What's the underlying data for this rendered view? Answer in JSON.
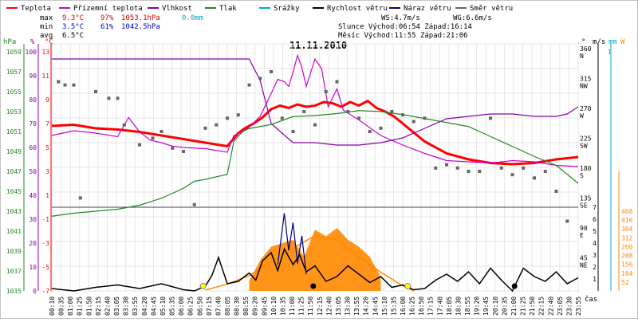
{
  "legend": [
    {
      "label": "Teplota",
      "color": "#ff0000"
    },
    {
      "label": "Přízemní teplota",
      "color": "#cc00cc"
    },
    {
      "label": "Vlhkost",
      "color": "#8800aa"
    },
    {
      "label": "Tlak",
      "color": "#228822"
    },
    {
      "label": "Srážky",
      "color": "#00aacc"
    },
    {
      "label": "Rychlost větru",
      "color": "#000000"
    },
    {
      "label": "Náraz větru",
      "color": "#000088"
    },
    {
      "label": "Směr větru",
      "color": "#666666"
    }
  ],
  "stats": {
    "max_label": "max",
    "max_temp": "9.3°C",
    "max_hum": "97%",
    "max_press": "1053.1hPa",
    "max_rain": "0.0mm",
    "min_label": "min",
    "min_temp": "3.5°C",
    "min_hum": "61%",
    "min_press": "1042.5hPa",
    "avg_label": "avg",
    "avg_temp": "6.5°C",
    "ws": "WS:4.7m/s",
    "wg": "WG:6.6m/s",
    "slunce": "Slunce Východ:06:54  Západ:16:14",
    "mesic": "Měsíc  Východ:11:55  Západ:21:06"
  },
  "axis_headers": {
    "hpa": "hPa",
    "pct": "%",
    "degc": "°C",
    "deg": "°",
    "ms": "m/s",
    "mm": "mm",
    "w": "W",
    "cas": "čas"
  },
  "chart_data": {
    "type": "line",
    "title": "11.11.2010",
    "x_ticks": [
      "00:10",
      "00:35",
      "01:00",
      "01:25",
      "01:50",
      "02:15",
      "02:40",
      "03:05",
      "03:30",
      "03:55",
      "04:20",
      "04:45",
      "05:10",
      "05:35",
      "06:00",
      "06:25",
      "06:50",
      "07:15",
      "07:40",
      "08:05",
      "08:30",
      "08:55",
      "09:20",
      "09:45",
      "10:10",
      "10:35",
      "11:00",
      "11:25",
      "11:50",
      "12:15",
      "12:40",
      "13:05",
      "13:30",
      "13:55",
      "14:20",
      "14:45",
      "15:10",
      "15:35",
      "16:00",
      "16:25",
      "16:50",
      "17:15",
      "17:40",
      "18:05",
      "18:30",
      "18:55",
      "19:20",
      "19:45",
      "20:10",
      "20:35",
      "21:00",
      "21:25",
      "21:50",
      "22:15",
      "22:40",
      "23:05",
      "23:30",
      "23:55"
    ],
    "axes": {
      "pressure_hpa": [
        "1059",
        "1057",
        "1055",
        "1053",
        "1051",
        "1049",
        "1047",
        "1045",
        "1043",
        "1041",
        "1039",
        "1037",
        "1035"
      ],
      "humidity_pct": [
        "100",
        "90",
        "80",
        "70",
        "60",
        "50",
        "40",
        "30",
        "20",
        "10",
        "0"
      ],
      "temp_c": [
        "13",
        "11",
        "9",
        "7",
        "5",
        "3",
        "1",
        "-1",
        "-3",
        "-5",
        "-7"
      ],
      "direction": [
        {
          "deg": "360",
          "dir": "N"
        },
        {
          "deg": "315",
          "dir": "NW"
        },
        {
          "deg": "270",
          "dir": "W"
        },
        {
          "deg": "225",
          "dir": "SW"
        },
        {
          "deg": "180",
          "dir": "S"
        },
        {
          "deg": "135",
          "dir": "SE"
        },
        {
          "deg": "90",
          "dir": "E"
        },
        {
          "deg": "45",
          "dir": "NE"
        }
      ],
      "wind_ms": [
        "7",
        "6",
        "5",
        "4",
        "3",
        "2",
        "1"
      ],
      "rain_mm": [
        "1"
      ],
      "solar_w": [
        "468",
        "416",
        "364",
        "312",
        "260",
        "208",
        "156",
        "104",
        "52"
      ]
    },
    "series": [
      {
        "name": "Teplota",
        "unit": "°C",
        "color": "#ff0000",
        "x": [
          0,
          1,
          2,
          3,
          4,
          5,
          6,
          7,
          8,
          8.5,
          8.8,
          9.2,
          9.6,
          10,
          10.4,
          10.8,
          11.2,
          11.6,
          12,
          12.4,
          12.8,
          13.2,
          13.6,
          14,
          14.4,
          14.8,
          15.2,
          15.6,
          16,
          17,
          18,
          19,
          20,
          21,
          22,
          23,
          24
        ],
        "y": [
          6.8,
          6.9,
          6.6,
          6.5,
          6.3,
          6,
          5.7,
          5.4,
          5.1,
          6.2,
          6.6,
          7,
          7.5,
          8.2,
          8.5,
          8.3,
          8.6,
          8.4,
          8.5,
          8.8,
          8.7,
          8.4,
          8.8,
          8.5,
          8.9,
          8.3,
          8.0,
          7.6,
          7.0,
          5.5,
          4.5,
          4.0,
          3.7,
          3.6,
          3.7,
          4.0,
          4.2
        ]
      },
      {
        "name": "Přízemní teplota",
        "unit": "°C",
        "color": "#cc00cc",
        "x": [
          0,
          1,
          2,
          3,
          3.5,
          4,
          4.5,
          5,
          5.5,
          6,
          7,
          8,
          8.3,
          8.7,
          9,
          9.5,
          10,
          10.3,
          10.6,
          10.8,
          11,
          11.2,
          11.4,
          11.6,
          12,
          12.3,
          12.6,
          13,
          13.3,
          14,
          15,
          16,
          17,
          18,
          19,
          20,
          21,
          22,
          23,
          24
        ],
        "y": [
          6.0,
          6.4,
          6.2,
          5.9,
          7.5,
          6.3,
          5.6,
          5.4,
          5.1,
          5.0,
          4.9,
          4.6,
          6.0,
          6.3,
          6.7,
          7.6,
          9.5,
          10.7,
          10.5,
          10.1,
          11.3,
          12.7,
          11.7,
          10.1,
          12.4,
          11.6,
          8.4,
          9.9,
          8.1,
          7.3,
          6.0,
          5.2,
          4.5,
          3.9,
          3.8,
          3.7,
          3.9,
          3.8,
          3.5,
          3.4
        ]
      },
      {
        "name": "Vlhkost",
        "unit": "%",
        "color": "#8800aa",
        "x": [
          0,
          1,
          2,
          3,
          4,
          5,
          6,
          7,
          8,
          9,
          9.5,
          10,
          10.5,
          11,
          12,
          13,
          14,
          15,
          16,
          17,
          18,
          19,
          20,
          21,
          22,
          23,
          23.5,
          24
        ],
        "y": [
          97,
          97,
          97,
          97,
          97,
          97,
          97,
          97,
          97,
          97,
          88,
          70,
          66,
          62,
          62,
          61,
          61,
          62,
          64,
          68,
          72,
          73,
          74,
          74,
          73,
          73,
          74,
          77
        ]
      },
      {
        "name": "Tlak",
        "unit": "hPa",
        "color": "#228822",
        "x": [
          0,
          1,
          2,
          3,
          4,
          5,
          6,
          6.5,
          7,
          8,
          8.3,
          8.7,
          9,
          10,
          11,
          12,
          13,
          14,
          15,
          16,
          17,
          18,
          19,
          20,
          21,
          22,
          23,
          24
        ],
        "y": [
          1042.5,
          1042.8,
          1043.0,
          1043.2,
          1043.6,
          1044.3,
          1045.3,
          1046.0,
          1046.2,
          1046.7,
          1050.0,
          1051.0,
          1051.3,
          1051.7,
          1052.5,
          1052.6,
          1052.8,
          1053.1,
          1053.0,
          1052.7,
          1052.3,
          1051.9,
          1051.5,
          1050.5,
          1049.5,
          1048.5,
          1047.6,
          1045.8
        ]
      },
      {
        "name": "Rychlost větru",
        "unit": "m/s",
        "color": "#000000",
        "x": [
          0,
          1,
          2,
          3,
          4,
          5,
          6,
          6.5,
          7,
          7.3,
          7.6,
          8,
          8.5,
          9,
          9.3,
          9.6,
          10,
          10.3,
          10.6,
          11,
          11.3,
          11.6,
          12,
          12.5,
          13,
          13.5,
          14,
          14.5,
          15,
          15.5,
          16,
          16.5,
          17,
          17.5,
          18,
          18.5,
          19,
          19.5,
          20,
          20.5,
          21,
          21.5,
          22,
          22.5,
          23,
          23.5,
          24
        ],
        "y": [
          0.2,
          0,
          0.3,
          0.5,
          0.2,
          0.6,
          0.1,
          0,
          0.4,
          1.3,
          2.8,
          0.6,
          0.8,
          1.5,
          0.9,
          2.5,
          3.2,
          1.7,
          3.5,
          2.2,
          3.0,
          1.6,
          2.1,
          0.8,
          1.2,
          2.1,
          1.4,
          0.7,
          1.2,
          0.3,
          0.5,
          0.1,
          0.2,
          0.9,
          1.4,
          0.8,
          1.6,
          0.6,
          1.9,
          0.9,
          0,
          1.9,
          1.2,
          0.8,
          1.6,
          0.6,
          1.1
        ]
      },
      {
        "name": "Náraz větru",
        "unit": "m/s",
        "color": "#000088",
        "x": [
          10.3,
          10.6,
          10.8,
          11,
          11.2,
          11.4,
          11.6
        ],
        "y": [
          2.2,
          6.5,
          3.4,
          5.7,
          2.3,
          4.6,
          1.4
        ]
      }
    ],
    "solar_radiation_w": {
      "x": [
        7,
        8,
        9,
        10,
        11,
        12,
        13,
        14,
        15,
        16,
        16.5
      ],
      "y": [
        5,
        40,
        90,
        170,
        250,
        325,
        300,
        200,
        110,
        30,
        0
      ]
    },
    "sunshine_w": {
      "x": [
        9,
        9.5,
        10,
        10.5,
        11,
        11.5,
        12,
        12.5,
        13,
        13.5,
        14,
        14.5,
        15
      ],
      "y": [
        60,
        180,
        260,
        280,
        300,
        200,
        360,
        320,
        370,
        300,
        260,
        200,
        80
      ]
    },
    "wind_direction_deg": {
      "x": [
        0.3,
        0.6,
        1,
        1.3,
        2,
        2.6,
        3,
        3.3,
        4,
        4.6,
        5,
        5.5,
        6,
        6.5,
        7,
        7.5,
        8,
        8.5,
        9,
        9.5,
        10,
        10.5,
        11,
        11.5,
        12,
        12.5,
        13,
        13.5,
        14,
        14.5,
        15,
        15.5,
        16,
        16.5,
        17,
        17.5,
        18,
        18.5,
        19,
        19.5,
        20,
        20.5,
        21,
        21.5,
        22,
        22.5,
        23,
        23.5
      ],
      "y": [
        315,
        310,
        310,
        140,
        300,
        290,
        290,
        250,
        220,
        230,
        240,
        215,
        210,
        130,
        245,
        250,
        260,
        265,
        310,
        320,
        330,
        260,
        240,
        270,
        250,
        300,
        315,
        270,
        260,
        240,
        245,
        270,
        265,
        255,
        260,
        185,
        190,
        185,
        180,
        180,
        260,
        185,
        175,
        185,
        170,
        180,
        150,
        105
      ]
    },
    "sun_events": [
      {
        "t": 6.9,
        "kind": "sunrise"
      },
      {
        "t": 16.23,
        "kind": "sunset"
      }
    ],
    "moon_events": [
      {
        "t": 11.92,
        "kind": "moonrise"
      },
      {
        "t": 21.1,
        "kind": "moonset"
      }
    ]
  }
}
